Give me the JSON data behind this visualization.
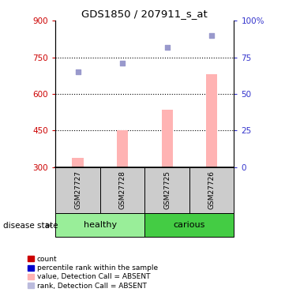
{
  "title": "GDS1850 / 207911_s_at",
  "samples": [
    "GSM27727",
    "GSM27728",
    "GSM27725",
    "GSM27726"
  ],
  "bar_values": [
    340,
    450,
    535,
    680
  ],
  "bar_bottom": 300,
  "bar_color": "#FFB3B3",
  "dot_values": [
    690,
    725,
    790,
    840
  ],
  "dot_color": "#9999CC",
  "ylim_left": [
    300,
    900
  ],
  "ylim_right": [
    0,
    100
  ],
  "yticks_left": [
    300,
    450,
    600,
    750,
    900
  ],
  "yticks_right": [
    0,
    25,
    50,
    75,
    100
  ],
  "ytick_labels_right": [
    "0",
    "25",
    "50",
    "75",
    "100%"
  ],
  "left_axis_color": "#CC0000",
  "right_axis_color": "#3333CC",
  "dotted_lines": [
    450,
    600,
    750
  ],
  "groups": [
    {
      "label": "healthy",
      "samples_idx": [
        0,
        1
      ],
      "color": "#99EE99"
    },
    {
      "label": "carious",
      "samples_idx": [
        2,
        3
      ],
      "color": "#44CC44"
    }
  ],
  "group_label": "disease state",
  "legend_items": [
    {
      "label": "count",
      "color": "#CC0000"
    },
    {
      "label": "percentile rank within the sample",
      "color": "#0000CC"
    },
    {
      "label": "value, Detection Call = ABSENT",
      "color": "#FFB3B3"
    },
    {
      "label": "rank, Detection Call = ABSENT",
      "color": "#BBBBDD"
    }
  ],
  "sample_box_color": "#CCCCCC"
}
